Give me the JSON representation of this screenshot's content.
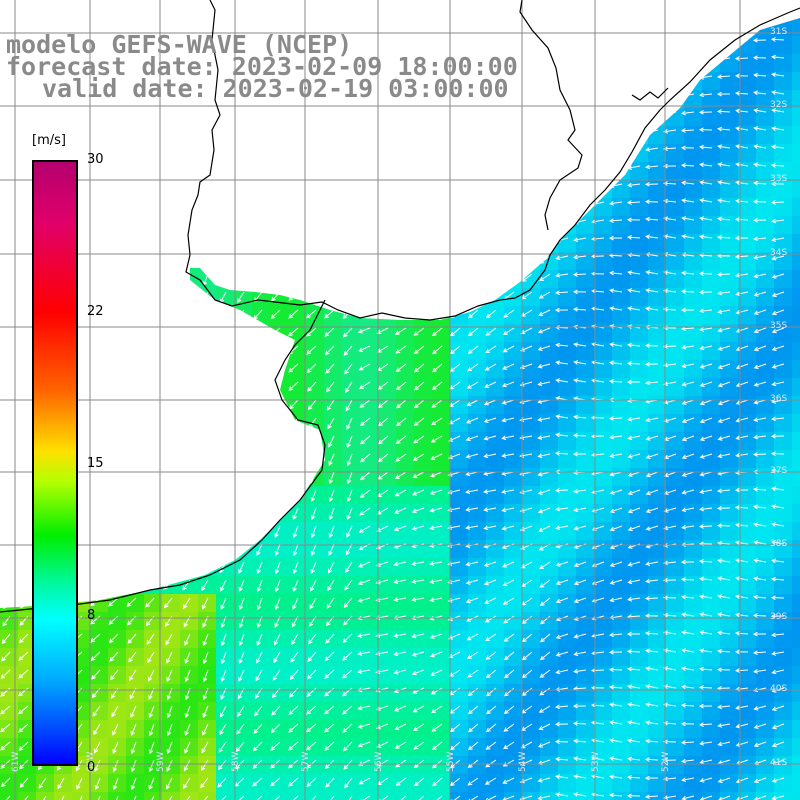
{
  "title": {
    "model": "modelo GEFS-WAVE (NCEP)",
    "forecast": "forecast date: 2023-02-09 18:00:00",
    "valid": "valid date: 2023-02-19 03:00:00"
  },
  "colorbar": {
    "unit": "[m/s]",
    "ticks": [
      "30",
      "22",
      "15",
      "8",
      "0"
    ],
    "range": [
      0,
      30
    ],
    "colors": [
      "#b4006e",
      "#ff0000",
      "#ff6400",
      "#ffe000",
      "#00ee00",
      "#00ffff",
      "#00aaff",
      "#0000ff"
    ]
  },
  "map": {
    "land_color": "#ffffff",
    "coast_color": "#000000",
    "grid_color": "#888888",
    "arrow_color": "#ffffff",
    "lat_labels": [
      "31S",
      "32S",
      "33S",
      "34S",
      "35S",
      "36S",
      "37S",
      "38S",
      "39S",
      "40S",
      "41S"
    ],
    "lon_labels": [
      "61W",
      "60W",
      "59W",
      "58W",
      "57W",
      "56W",
      "55W",
      "54W",
      "53W",
      "52W"
    ]
  }
}
